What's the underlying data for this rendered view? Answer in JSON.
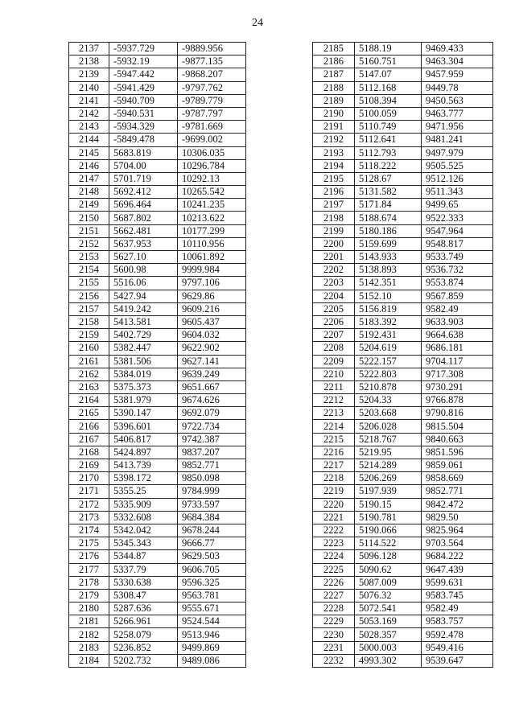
{
  "page_number": "24",
  "left_table": {
    "rows": [
      [
        "2137",
        "-5937.729",
        "-9889.956"
      ],
      [
        "2138",
        "-5932.19",
        "-9877.135"
      ],
      [
        "2139",
        "-5947.442",
        "-9868.207"
      ],
      [
        "2140",
        "-5941.429",
        "-9797.762"
      ],
      [
        "2141",
        "-5940.709",
        "-9789.779"
      ],
      [
        "2142",
        "-5940.531",
        "-9787.797"
      ],
      [
        "2143",
        "-5934.329",
        "-9781.669"
      ],
      [
        "2144",
        "-5849.478",
        "-9699.002"
      ],
      [
        "2145",
        "5683.819",
        "10306.035"
      ],
      [
        "2146",
        "5704.00",
        "10296.784"
      ],
      [
        "2147",
        "5701.719",
        "10292.13"
      ],
      [
        "2148",
        "5692.412",
        "10265.542"
      ],
      [
        "2149",
        "5696.464",
        "10241.235"
      ],
      [
        "2150",
        "5687.802",
        "10213.622"
      ],
      [
        "2151",
        "5662.481",
        "10177.299"
      ],
      [
        "2152",
        "5637.953",
        "10110.956"
      ],
      [
        "2153",
        "5627.10",
        "10061.892"
      ],
      [
        "2154",
        "5600.98",
        "9999.984"
      ],
      [
        "2155",
        "5516.06",
        "9797.106"
      ],
      [
        "2156",
        "5427.94",
        "9629.86"
      ],
      [
        "2157",
        "5419.242",
        "9609.216"
      ],
      [
        "2158",
        "5413.581",
        "9605.437"
      ],
      [
        "2159",
        "5402.729",
        "9604.032"
      ],
      [
        "2160",
        "5382.447",
        "9622.902"
      ],
      [
        "2161",
        "5381.506",
        "9627.141"
      ],
      [
        "2162",
        "5384.019",
        "9639.249"
      ],
      [
        "2163",
        "5375.373",
        "9651.667"
      ],
      [
        "2164",
        "5381.979",
        "9674.626"
      ],
      [
        "2165",
        "5390.147",
        "9692.079"
      ],
      [
        "2166",
        "5396.601",
        "9722.734"
      ],
      [
        "2167",
        "5406.817",
        "9742.387"
      ],
      [
        "2168",
        "5424.897",
        "9837.207"
      ],
      [
        "2169",
        "5413.739",
        "9852.771"
      ],
      [
        "2170",
        "5398.172",
        "9850.098"
      ],
      [
        "2171",
        "5355.25",
        "9784.999"
      ],
      [
        "2172",
        "5335.909",
        "9733.597"
      ],
      [
        "2173",
        "5332.608",
        "9684.384"
      ],
      [
        "2174",
        "5342.042",
        "9678.244"
      ],
      [
        "2175",
        "5345.343",
        "9666.77"
      ],
      [
        "2176",
        "5344.87",
        "9629.503"
      ],
      [
        "2177",
        "5337.79",
        "9606.705"
      ],
      [
        "2178",
        "5330.638",
        "9596.325"
      ],
      [
        "2179",
        "5308.47",
        "9563.781"
      ],
      [
        "2180",
        "5287.636",
        "9555.671"
      ],
      [
        "2181",
        "5266.961",
        "9524.544"
      ],
      [
        "2182",
        "5258.079",
        "9513.946"
      ],
      [
        "2183",
        "5236.852",
        "9499.869"
      ],
      [
        "2184",
        "5202.732",
        "9489.086"
      ]
    ]
  },
  "right_table": {
    "rows": [
      [
        "2185",
        "5188.19",
        "9469.433"
      ],
      [
        "2186",
        "5160.751",
        "9463.304"
      ],
      [
        "2187",
        "5147.07",
        "9457.959"
      ],
      [
        "2188",
        "5112.168",
        "9449.78"
      ],
      [
        "2189",
        "5108.394",
        "9450.563"
      ],
      [
        "2190",
        "5100.059",
        "9463.777"
      ],
      [
        "2191",
        "5110.749",
        "9471.956"
      ],
      [
        "2192",
        "5112.641",
        "9481.241"
      ],
      [
        "2193",
        "5112.793",
        "9497.979"
      ],
      [
        "2194",
        "5118.222",
        "9505.525"
      ],
      [
        "2195",
        "5128.67",
        "9512.126"
      ],
      [
        "2196",
        "5131.582",
        "9511.343"
      ],
      [
        "2197",
        "5171.84",
        "9499.65"
      ],
      [
        "2198",
        "5188.674",
        "9522.333"
      ],
      [
        "2199",
        "5180.186",
        "9547.964"
      ],
      [
        "2200",
        "5159.699",
        "9548.817"
      ],
      [
        "2201",
        "5143.933",
        "9533.749"
      ],
      [
        "2202",
        "5138.893",
        "9536.732"
      ],
      [
        "2203",
        "5142.351",
        "9553.874"
      ],
      [
        "2204",
        "5152.10",
        "9567.859"
      ],
      [
        "2205",
        "5156.819",
        "9582.49"
      ],
      [
        "2206",
        "5183.392",
        "9633.903"
      ],
      [
        "2207",
        "5192.431",
        "9664.638"
      ],
      [
        "2208",
        "5204.619",
        "9686.181"
      ],
      [
        "2209",
        "5222.157",
        "9704.117"
      ],
      [
        "2210",
        "5222.803",
        "9717.308"
      ],
      [
        "2211",
        "5210.878",
        "9730.291"
      ],
      [
        "2212",
        "5204.33",
        "9766.878"
      ],
      [
        "2213",
        "5203.668",
        "9790.816"
      ],
      [
        "2214",
        "5206.028",
        "9815.504"
      ],
      [
        "2215",
        "5218.767",
        "9840.663"
      ],
      [
        "2216",
        "5219.95",
        "9851.596"
      ],
      [
        "2217",
        "5214.289",
        "9859.061"
      ],
      [
        "2218",
        "5206.269",
        "9858.669"
      ],
      [
        "2219",
        "5197.939",
        "9852.771"
      ],
      [
        "2220",
        "5190.15",
        "9842.472"
      ],
      [
        "2221",
        "5190.781",
        "9829.50"
      ],
      [
        "2222",
        "5190.066",
        "9825.964"
      ],
      [
        "2223",
        "5114.522",
        "9703.564"
      ],
      [
        "2224",
        "5096.128",
        "9684.222"
      ],
      [
        "2225",
        "5090.62",
        "9647.439"
      ],
      [
        "2226",
        "5087.009",
        "9599.631"
      ],
      [
        "2227",
        "5076.32",
        "9583.745"
      ],
      [
        "2228",
        "5072.541",
        "9582.49"
      ],
      [
        "2229",
        "5053.169",
        "9583.757"
      ],
      [
        "2230",
        "5028.357",
        "9592.478"
      ],
      [
        "2231",
        "5000.003",
        "9549.416"
      ],
      [
        "2232",
        "4993.302",
        "9539.647"
      ]
    ]
  }
}
